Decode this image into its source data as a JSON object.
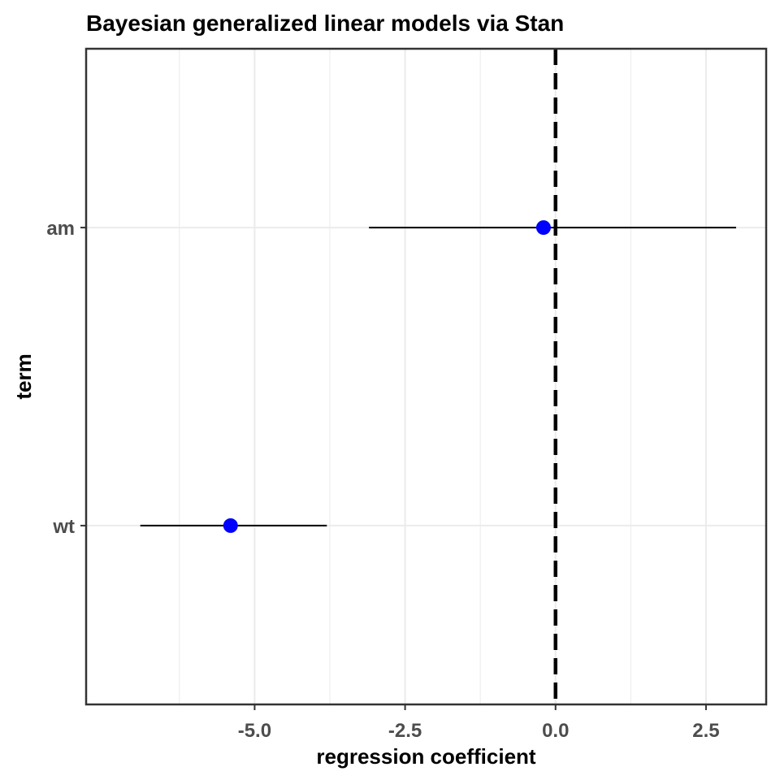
{
  "chart_data": {
    "type": "scatter",
    "title": "Bayesian generalized linear models via Stan",
    "xlabel": "regression coefficient",
    "ylabel": "term",
    "xlim": [
      -7.8,
      3.5
    ],
    "x_ticks": [
      -5.0,
      -2.5,
      0.0,
      2.5
    ],
    "x_tick_labels": [
      "-5.0",
      "-2.5",
      "0.0",
      "2.5"
    ],
    "categories": [
      "am",
      "wt"
    ],
    "points": [
      {
        "term": "am",
        "estimate": -0.2,
        "conf_low": -3.1,
        "conf_high": 3.0
      },
      {
        "term": "wt",
        "estimate": -5.4,
        "conf_low": -6.9,
        "conf_high": -3.8
      }
    ],
    "reference_line": {
      "x": 0,
      "style": "dashed"
    },
    "grid": true,
    "point_color": "#0000ff",
    "interval_color": "#000000"
  }
}
